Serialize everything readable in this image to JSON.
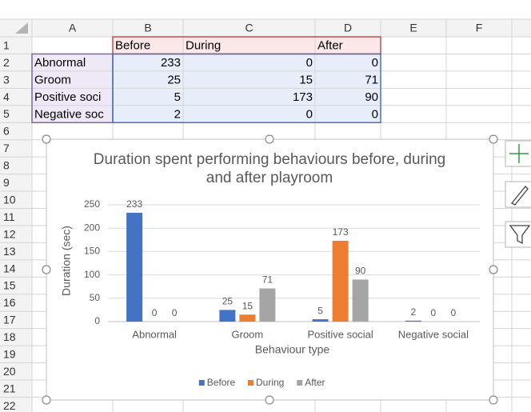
{
  "sheet": {
    "column_headers": [
      "A",
      "B",
      "C",
      "D",
      "E",
      "F"
    ],
    "row_headers": [
      1,
      2,
      3,
      4,
      5,
      6,
      7,
      8,
      9,
      10,
      11,
      12,
      13,
      14,
      15,
      16,
      17,
      18,
      19,
      20,
      21,
      22
    ],
    "header_row": [
      "Before",
      "During",
      "After"
    ],
    "rows": [
      [
        "Abnormal",
        233,
        0,
        0
      ],
      [
        "Groom",
        25,
        15,
        71
      ],
      [
        "Positive soci",
        5,
        173,
        90
      ],
      [
        "Negative soc",
        2,
        0,
        0
      ]
    ]
  },
  "chart_data": {
    "type": "bar",
    "title": "Duration spent performing behaviours before, during and after playroom",
    "x_label": "Behaviour type",
    "y_label": "Duration (sec)",
    "categories": [
      "Abnormal",
      "Groom",
      "Positive social",
      "Negative social"
    ],
    "series": [
      {
        "name": "Before",
        "color": "#4472c4",
        "values": [
          233,
          25,
          5,
          2
        ]
      },
      {
        "name": "During",
        "color": "#ed7d31",
        "values": [
          0,
          15,
          173,
          0
        ]
      },
      {
        "name": "After",
        "color": "#a5a5a5",
        "values": [
          0,
          71,
          90,
          0
        ]
      }
    ],
    "ylim": [
      0,
      250
    ],
    "yticks": [
      0,
      50,
      100,
      150,
      200,
      250
    ],
    "grid": true,
    "legend": "bottom",
    "data_labels": true
  }
}
